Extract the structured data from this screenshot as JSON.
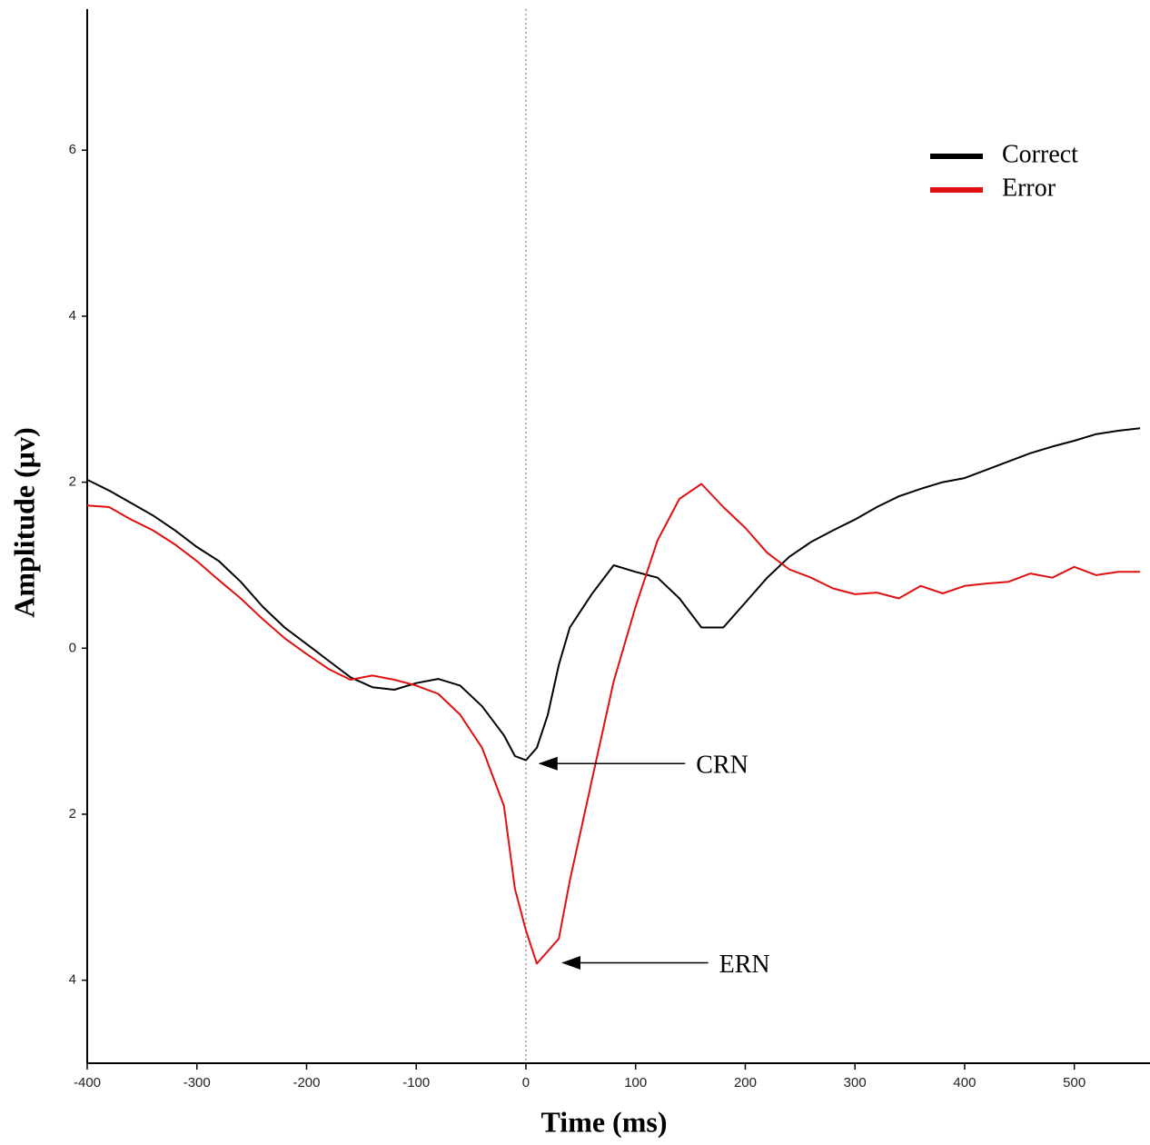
{
  "chart_data": {
    "type": "line",
    "xlabel": "Time (ms)",
    "ylabel": "Amplitude (µv)",
    "x": [
      -400,
      -380,
      -360,
      -340,
      -320,
      -300,
      -280,
      -260,
      -240,
      -220,
      -200,
      -180,
      -160,
      -140,
      -120,
      -100,
      -80,
      -60,
      -40,
      -20,
      -10,
      0,
      10,
      20,
      30,
      40,
      60,
      80,
      100,
      120,
      140,
      160,
      180,
      200,
      220,
      240,
      260,
      280,
      300,
      320,
      340,
      360,
      380,
      400,
      420,
      440,
      460,
      480,
      500,
      520,
      540,
      560
    ],
    "series": [
      {
        "name": "Correct",
        "color": "#000000",
        "values": [
          2.03,
          1.9,
          1.75,
          1.6,
          1.42,
          1.22,
          1.05,
          0.8,
          0.5,
          0.25,
          0.05,
          -0.15,
          -0.35,
          -0.47,
          -0.5,
          -0.42,
          -0.37,
          -0.45,
          -0.7,
          -1.05,
          -1.3,
          -1.35,
          -1.2,
          -0.8,
          -0.2,
          0.25,
          0.65,
          1.0,
          0.92,
          0.85,
          0.6,
          0.25,
          0.25,
          0.55,
          0.85,
          1.1,
          1.28,
          1.42,
          1.55,
          1.7,
          1.83,
          1.92,
          2.0,
          2.05,
          2.15,
          2.25,
          2.35,
          2.43,
          2.5,
          2.58,
          2.62,
          2.65
        ]
      },
      {
        "name": "Error",
        "color": "#e01010",
        "values": [
          1.72,
          1.7,
          1.55,
          1.42,
          1.25,
          1.05,
          0.82,
          0.6,
          0.35,
          0.12,
          -0.07,
          -0.25,
          -0.38,
          -0.33,
          -0.38,
          -0.45,
          -0.55,
          -0.8,
          -1.2,
          -1.9,
          -2.9,
          -3.4,
          -3.8,
          -3.65,
          -3.5,
          -2.8,
          -1.6,
          -0.4,
          0.5,
          1.3,
          1.8,
          1.98,
          1.7,
          1.45,
          1.15,
          0.95,
          0.85,
          0.72,
          0.65,
          0.67,
          0.6,
          0.75,
          0.66,
          0.75,
          0.78,
          0.8,
          0.9,
          0.85,
          0.98,
          0.88,
          0.92,
          0.92
        ]
      }
    ],
    "xlim": [
      -400,
      569
    ],
    "ylim": [
      -5,
      7.7
    ],
    "xticks": [
      -400,
      -300,
      -200,
      -100,
      0,
      100,
      200,
      300,
      400,
      500
    ],
    "yticks": [
      {
        "value": -4,
        "label": "4"
      },
      {
        "value": -2,
        "label": "2"
      },
      0,
      2,
      4,
      6
    ],
    "reference_line_x": 0,
    "legend": "upper right",
    "annotations": [
      {
        "text": "CRN",
        "x": 11,
        "y": -1.39
      },
      {
        "text": "ERN",
        "x": 32,
        "y": -3.79
      }
    ]
  }
}
